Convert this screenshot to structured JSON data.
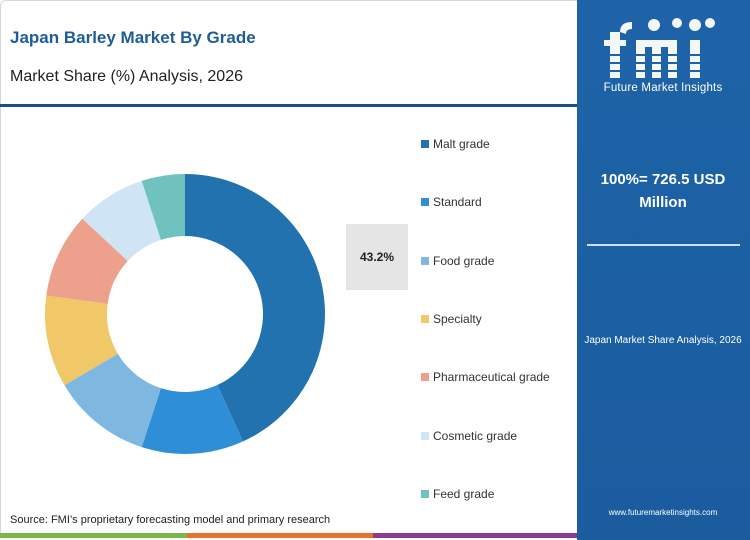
{
  "header": {
    "title": "Japan Barley Market By Grade",
    "subtitle": "Market Share (%) Analysis, 2026"
  },
  "chart_data": {
    "type": "pie",
    "style": "donut",
    "categories": [
      "Malt grade",
      "Standard",
      "Food grade",
      "Specialty",
      "Pharmaceutical grade",
      "Cosmetic grade",
      "Feed grade"
    ],
    "values": [
      43.2,
      11.8,
      11.5,
      10.6,
      9.8,
      8.1,
      5.0
    ],
    "colors": [
      "#2372b0",
      "#2e8fd6",
      "#7eb8e0",
      "#f0c867",
      "#eda18c",
      "#cfe4f4",
      "#6fc2bd"
    ],
    "highlight_label": "43.2%"
  },
  "panel": {
    "brand": "Future Market Insights",
    "total": "100%= 726.5 USD Million",
    "caption": "Japan Market Share Analysis, 2026",
    "url": "www.futuremarketinsights.com"
  },
  "footer": {
    "source": "Source: FMI’s proprietary forecasting model and primary research",
    "bar_colors": [
      "#7ab648",
      "#e8712b",
      "#8a3c8e"
    ]
  }
}
